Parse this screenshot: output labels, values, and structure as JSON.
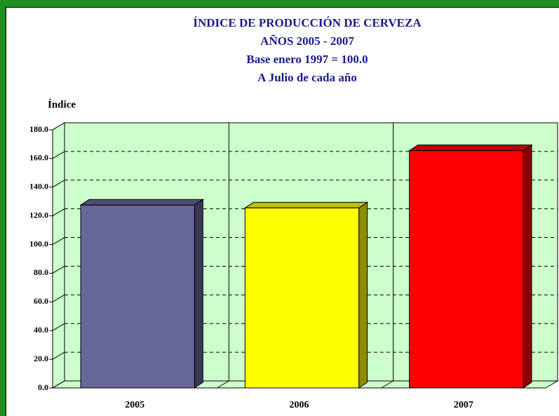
{
  "chart_data": {
    "type": "bar3d",
    "title": [
      "ÍNDICE DE PRODUCCIÓN DE CERVEZA",
      "AÑOS 2005 - 2007",
      "Base enero 1997 = 100.0",
      "A Julio de cada año"
    ],
    "y_label": "Índice",
    "categories": [
      "2005",
      "2006",
      "2007"
    ],
    "values": [
      127.5,
      125.5,
      165.5
    ],
    "colors": [
      "#666699",
      "#ffff00",
      "#ff0000"
    ],
    "ylim": [
      0,
      180
    ],
    "yticks": [
      {
        "value": 0,
        "label": "0.0"
      },
      {
        "value": 20,
        "label": "20.0"
      },
      {
        "value": 40,
        "label": "40.0"
      },
      {
        "value": 60,
        "label": "60.0"
      },
      {
        "value": 80,
        "label": "80.0"
      },
      {
        "value": 100,
        "label": "100.0"
      },
      {
        "value": 120,
        "label": "120.0"
      },
      {
        "value": 140,
        "label": "140.0"
      },
      {
        "value": 160,
        "label": "160.0"
      },
      {
        "value": 180,
        "label": "180.0"
      }
    ],
    "grid": true
  }
}
